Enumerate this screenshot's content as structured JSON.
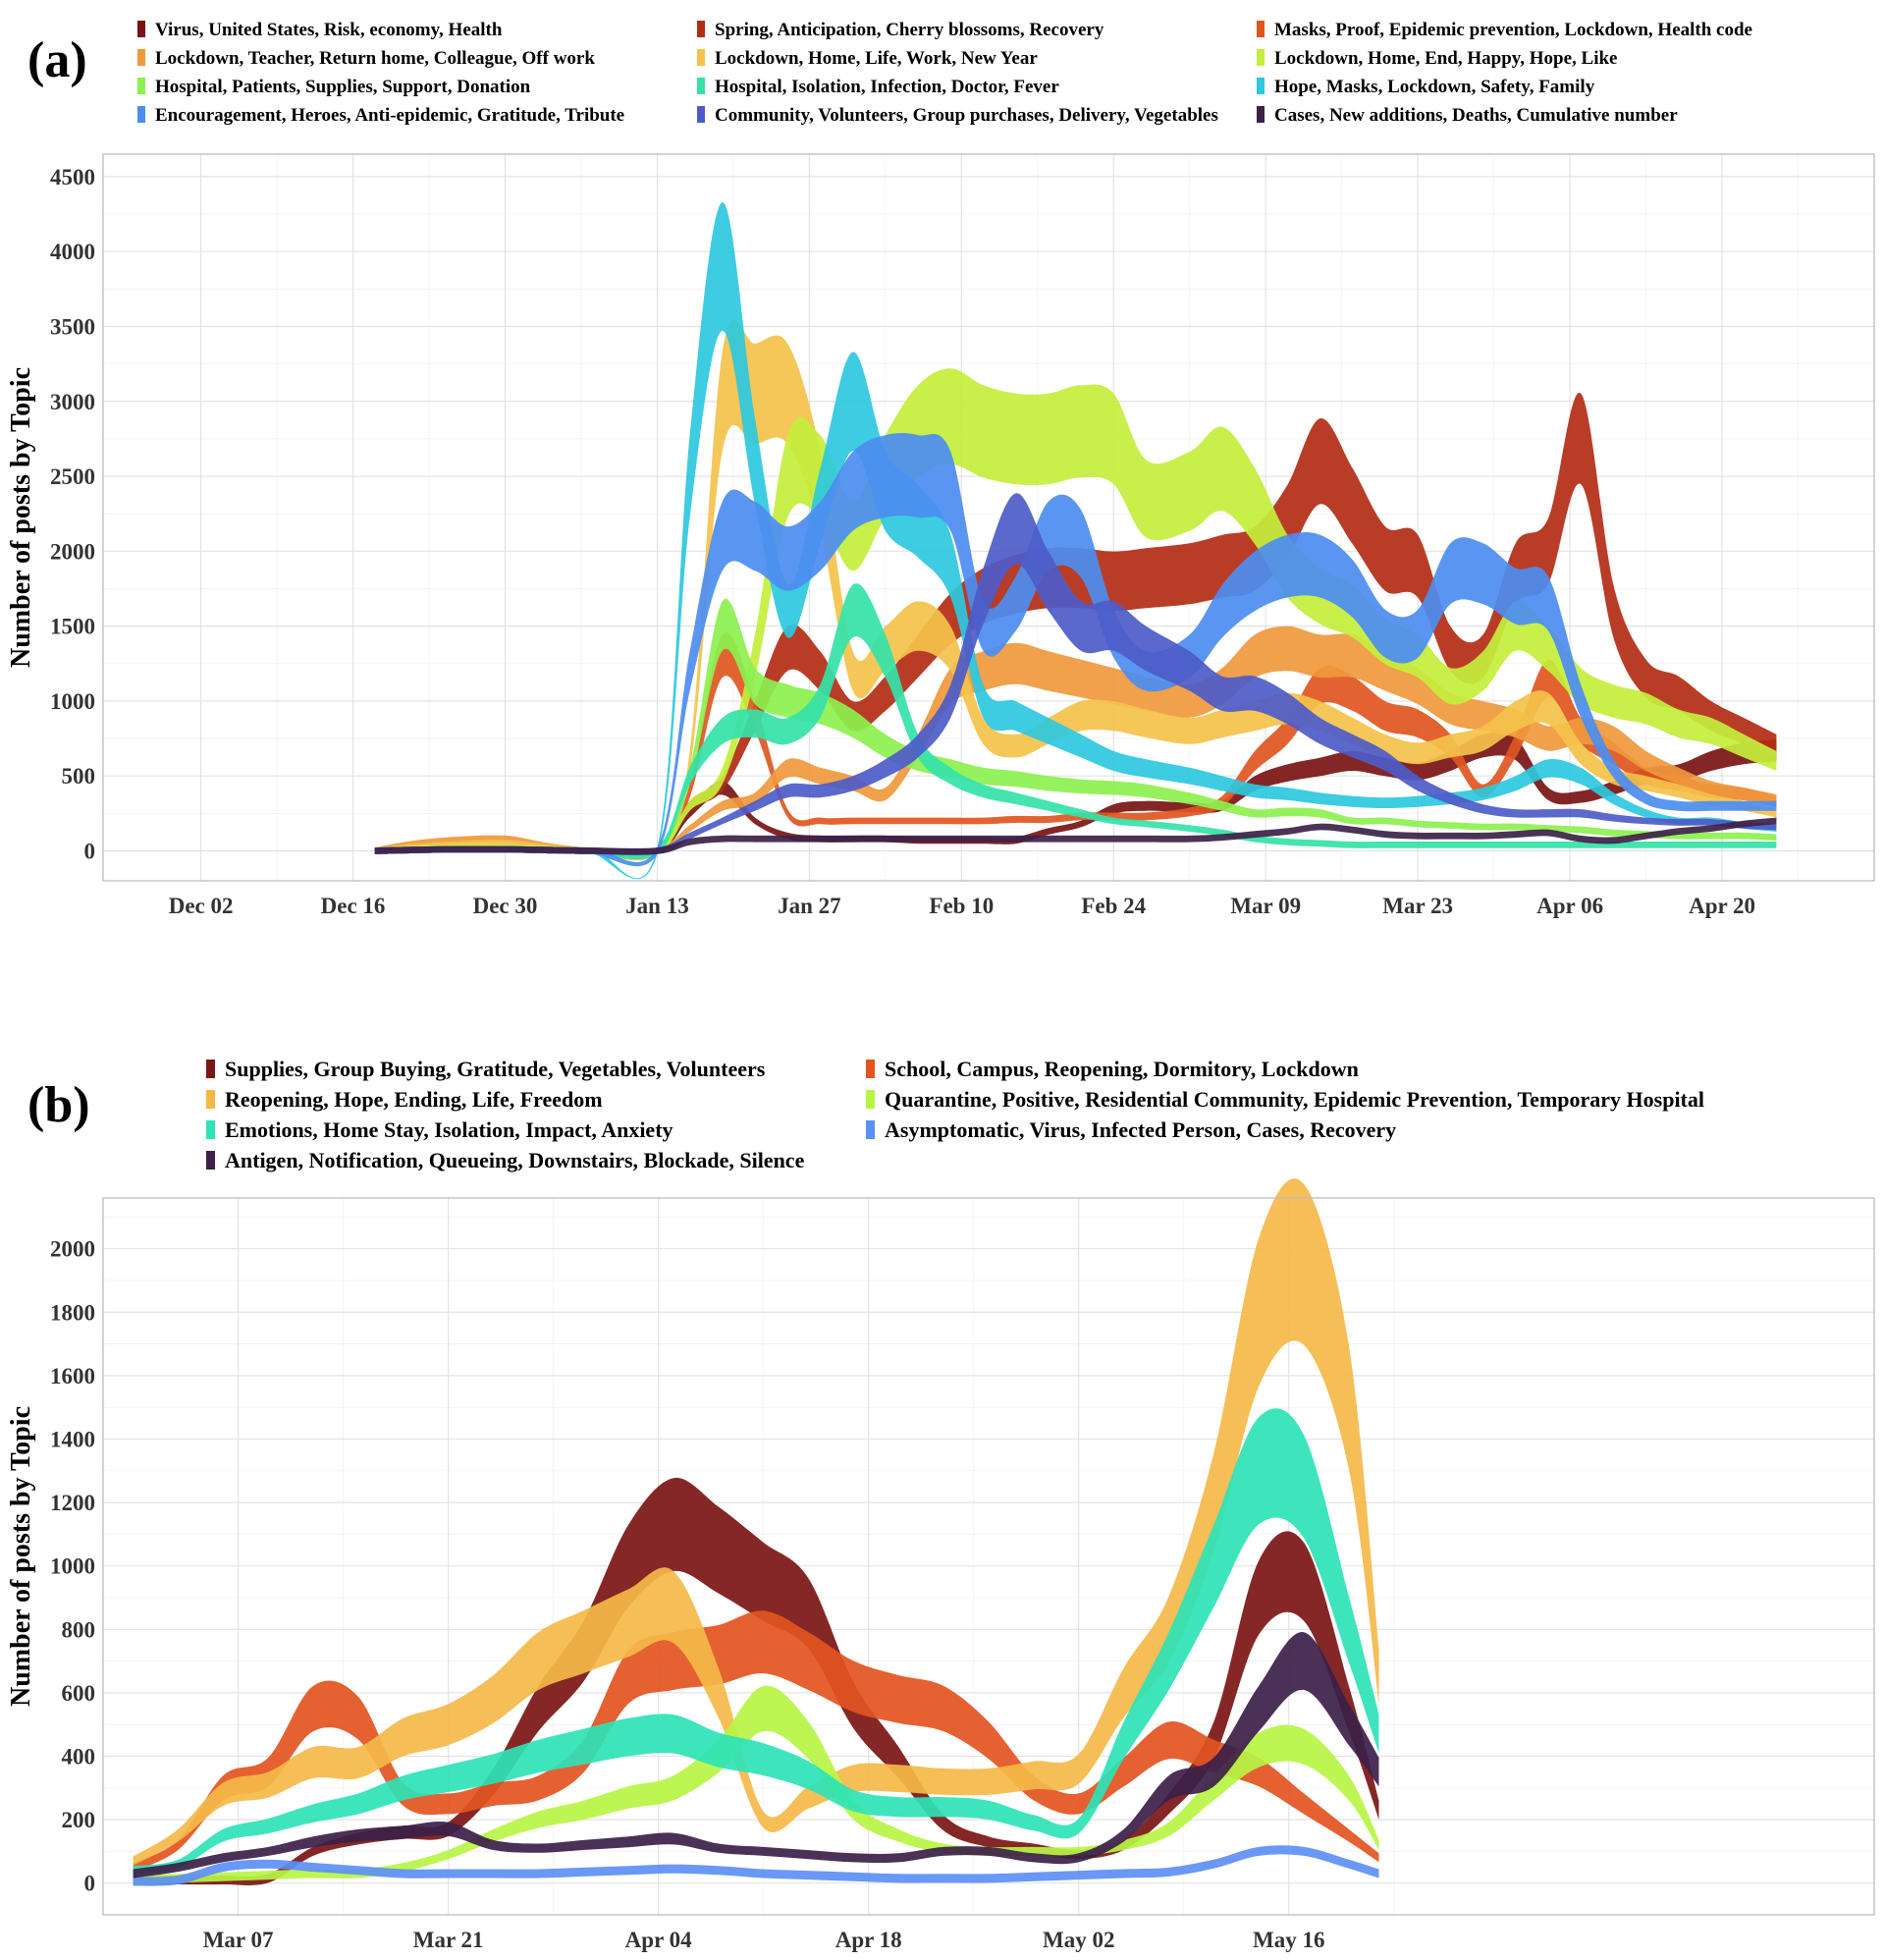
{
  "chart_data": [
    {
      "panel": "(a)",
      "type": "area",
      "ylabel": "Number of posts by Topic",
      "xlabel": "",
      "x_ticks": [
        "Dec 02",
        "Dec 16",
        "Dec 30",
        "Jan 13",
        "Jan 27",
        "Feb 10",
        "Feb 24",
        "Mar 09",
        "Mar 23",
        "Apr 06",
        "Apr 20"
      ],
      "y_ticks": [
        0,
        500,
        1000,
        1500,
        2000,
        2500,
        3000,
        3500,
        4000,
        4500
      ],
      "ylim": [
        -200,
        4650
      ],
      "legend_position": "top",
      "x": [
        "Dec 18",
        "Dec 21",
        "Dec 25",
        "Dec 30",
        "Jan 03",
        "Jan 07",
        "Jan 13",
        "Jan 16",
        "Jan 19",
        "Jan 22",
        "Jan 25",
        "Jan 28",
        "Jan 31",
        "Feb 03",
        "Feb 06",
        "Feb 09",
        "Feb 12",
        "Feb 15",
        "Feb 18",
        "Feb 21",
        "Feb 24",
        "Feb 27",
        "Mar 02",
        "Mar 05",
        "Mar 08",
        "Mar 11",
        "Mar 14",
        "Mar 17",
        "Mar 20",
        "Mar 23",
        "Mar 26",
        "Mar 29",
        "Apr 01",
        "Apr 04",
        "Apr 07",
        "Apr 10",
        "Apr 13",
        "Apr 16",
        "Apr 19",
        "Apr 22",
        "Apr 25"
      ],
      "series": [
        {
          "name": "Virus, United States, Risk, economy, Health",
          "color": "#7a1414",
          "values": [
            0,
            5,
            10,
            10,
            5,
            0,
            0,
            250,
            420,
            200,
            100,
            80,
            80,
            80,
            70,
            70,
            70,
            70,
            130,
            180,
            280,
            300,
            290,
            300,
            450,
            520,
            560,
            600,
            560,
            530,
            600,
            700,
            680,
            380,
            360,
            420,
            500,
            520,
            600,
            650,
            670
          ]
        },
        {
          "name": "Spring, Anticipation, Cherry blossoms, Recovery",
          "color": "#b32d13",
          "values": [
            0,
            5,
            10,
            10,
            5,
            0,
            0,
            300,
            450,
            900,
            1350,
            1200,
            900,
            1050,
            1300,
            1550,
            1700,
            1780,
            1820,
            1820,
            1800,
            1820,
            1850,
            1900,
            1950,
            2200,
            2600,
            2300,
            1950,
            1900,
            1350,
            1300,
            1850,
            2000,
            2750,
            1600,
            1150,
            1050,
            900,
            800,
            700
          ]
        },
        {
          "name": "Masks, Proof, Epidemic prevention, Lockdown, Health code",
          "color": "#e0561f",
          "values": [
            0,
            5,
            10,
            10,
            5,
            0,
            0,
            400,
            1300,
            900,
            250,
            200,
            200,
            200,
            200,
            200,
            200,
            210,
            210,
            230,
            230,
            230,
            260,
            330,
            600,
            800,
            1100,
            1050,
            900,
            850,
            700,
            400,
            700,
            1150,
            800,
            650,
            500,
            450,
            400,
            380,
            330
          ]
        },
        {
          "name": "Lockdown, Teacher, Return home, Colleague, Off work",
          "color": "#f0983c",
          "values": [
            0,
            40,
            70,
            80,
            30,
            0,
            0,
            150,
            300,
            350,
            550,
            500,
            450,
            380,
            700,
            1100,
            1200,
            1250,
            1200,
            1150,
            1100,
            1050,
            1000,
            1100,
            1300,
            1350,
            1300,
            1300,
            1200,
            1100,
            950,
            900,
            850,
            750,
            800,
            750,
            600,
            500,
            420,
            380,
            340
          ]
        },
        {
          "name": "Lockdown, Home, Life, Work, New Year",
          "color": "#f4c24a",
          "values": [
            0,
            20,
            40,
            50,
            20,
            0,
            0,
            600,
            3000,
            3050,
            3050,
            2400,
            1200,
            1350,
            1500,
            1350,
            800,
            700,
            800,
            900,
            900,
            850,
            800,
            850,
            900,
            950,
            900,
            800,
            700,
            650,
            700,
            750,
            900,
            950,
            650,
            500,
            450,
            400,
            340,
            300,
            250
          ]
        },
        {
          "name": "Lockdown, Home, End, Happy, Hope, Like",
          "color": "#c4ee3c",
          "values": [
            0,
            10,
            20,
            20,
            10,
            0,
            0,
            300,
            500,
            1300,
            2500,
            2500,
            2100,
            2500,
            2800,
            2900,
            2800,
            2750,
            2750,
            2800,
            2750,
            2350,
            2400,
            2550,
            2300,
            1900,
            1700,
            1600,
            1400,
            1300,
            1100,
            1200,
            1500,
            1350,
            1100,
            1000,
            950,
            850,
            800,
            700,
            600
          ]
        },
        {
          "name": "Hospital, Patients, Supplies, Support, Donation",
          "color": "#8cf04e",
          "values": [
            0,
            5,
            10,
            10,
            5,
            0,
            0,
            500,
            1500,
            1100,
            1000,
            950,
            850,
            700,
            600,
            550,
            500,
            480,
            450,
            430,
            420,
            400,
            350,
            300,
            250,
            260,
            250,
            200,
            200,
            180,
            170,
            160,
            160,
            150,
            140,
            120,
            110,
            100,
            100,
            100,
            90
          ]
        },
        {
          "name": "Hospital, Isolation, Infection, Doctor, Fever",
          "color": "#34e2a8",
          "values": [
            0,
            5,
            10,
            10,
            5,
            0,
            0,
            500,
            800,
            850,
            800,
            1000,
            1600,
            1300,
            700,
            500,
            400,
            350,
            300,
            250,
            200,
            180,
            150,
            120,
            80,
            60,
            50,
            40,
            40,
            40,
            40,
            40,
            40,
            40,
            40,
            40,
            40,
            40,
            40,
            40,
            40
          ]
        },
        {
          "name": "Hope, Masks, Lockdown, Safety, Family",
          "color": "#2dc8de",
          "values": [
            0,
            5,
            10,
            10,
            5,
            0,
            0,
            2500,
            3900,
            2600,
            1600,
            2300,
            3000,
            2400,
            2200,
            1900,
            1000,
            900,
            800,
            700,
            600,
            550,
            500,
            450,
            400,
            380,
            350,
            330,
            320,
            330,
            350,
            380,
            450,
            550,
            500,
            350,
            250,
            200,
            200,
            170,
            150
          ]
        },
        {
          "name": "Encouragement, Heroes, Anti-epidemic, Gratitude, Tribute",
          "color": "#4c8df0",
          "values": [
            0,
            5,
            10,
            10,
            5,
            0,
            0,
            1200,
            2100,
            2100,
            1950,
            2100,
            2400,
            2500,
            2500,
            2400,
            1500,
            1650,
            2100,
            2050,
            1450,
            1200,
            1300,
            1600,
            1800,
            1900,
            1900,
            1750,
            1450,
            1450,
            1850,
            1850,
            1700,
            1650,
            1000,
            550,
            350,
            300,
            300,
            300,
            300
          ]
        },
        {
          "name": "Community, Volunteers, Group purchases, Delivery, Vegetables",
          "color": "#4d5bc8",
          "values": [
            0,
            5,
            10,
            10,
            5,
            0,
            0,
            100,
            200,
            300,
            400,
            400,
            450,
            550,
            700,
            1000,
            1700,
            2150,
            1800,
            1500,
            1500,
            1350,
            1200,
            1050,
            1050,
            950,
            800,
            700,
            600,
            450,
            350,
            280,
            250,
            250,
            250,
            220,
            200,
            190,
            190,
            170,
            160
          ]
        },
        {
          "name": "Cases, New additions, Deaths, Cumulative number",
          "color": "#3d2248",
          "values": [
            0,
            5,
            10,
            10,
            5,
            0,
            0,
            60,
            80,
            80,
            80,
            80,
            80,
            80,
            80,
            80,
            80,
            80,
            80,
            80,
            80,
            80,
            80,
            90,
            110,
            130,
            160,
            140,
            110,
            100,
            100,
            100,
            110,
            120,
            80,
            70,
            100,
            130,
            150,
            180,
            200
          ]
        }
      ]
    },
    {
      "panel": "(b)",
      "type": "area",
      "ylabel": "Number of posts by Topic",
      "xlabel": "",
      "x_ticks": [
        "Mar 07",
        "Mar 21",
        "Apr 04",
        "Apr 18",
        "May 02",
        "May 16"
      ],
      "y_ticks": [
        0,
        200,
        400,
        600,
        800,
        1000,
        1200,
        1400,
        1600,
        1800,
        2000
      ],
      "ylim": [
        -100,
        2160
      ],
      "legend_position": "top",
      "x": [
        "Feb 29",
        "Mar 03",
        "Mar 06",
        "Mar 09",
        "Mar 12",
        "Mar 15",
        "Mar 18",
        "Mar 21",
        "Mar 24",
        "Mar 27",
        "Mar 30",
        "Apr 02",
        "Apr 05",
        "Apr 08",
        "Apr 11",
        "Apr 14",
        "Apr 17",
        "Apr 20",
        "Apr 23",
        "Apr 26",
        "Apr 29",
        "May 02",
        "May 05",
        "May 08",
        "May 11",
        "May 14",
        "May 17",
        "May 20",
        "May 22"
      ],
      "series": [
        {
          "name": "Supplies, Group Buying, Gratitude, Vegetables, Volunteers",
          "color": "#7c1515",
          "values": [
            10,
            10,
            10,
            15,
            100,
            140,
            160,
            170,
            320,
            550,
            730,
            1000,
            1130,
            1050,
            950,
            850,
            560,
            380,
            190,
            130,
            110,
            90,
            120,
            250,
            450,
            900,
            950,
            550,
            230
          ]
        },
        {
          "name": "School, Campus, Reopening, Dormitory, Lockdown",
          "color": "#e3541f",
          "values": [
            50,
            120,
            300,
            350,
            550,
            520,
            280,
            250,
            280,
            300,
            400,
            650,
            700,
            720,
            760,
            700,
            620,
            580,
            550,
            450,
            300,
            250,
            350,
            450,
            400,
            350,
            250,
            150,
            80
          ]
        },
        {
          "name": "Reopening, Hope, Ending, Life, Freedom",
          "color": "#f5b848",
          "values": [
            70,
            150,
            280,
            310,
            380,
            380,
            460,
            500,
            580,
            700,
            760,
            820,
            870,
            600,
            200,
            270,
            330,
            330,
            320,
            320,
            340,
            360,
            600,
            800,
            1200,
            1800,
            1950,
            1500,
            650
          ]
        },
        {
          "name": "Quarantine, Positive, Residential Community, Epidemic Prevention, Temporary Hospital",
          "color": "#b7f544",
          "values": [
            10,
            15,
            20,
            25,
            30,
            30,
            50,
            90,
            150,
            200,
            230,
            270,
            300,
            400,
            550,
            450,
            230,
            150,
            110,
            100,
            100,
            100,
            120,
            170,
            300,
            420,
            430,
            300,
            120
          ]
        },
        {
          "name": "Emotions, Home Stay, Isolation, Impact, Anxiety",
          "color": "#2ee3b6",
          "values": [
            40,
            60,
            150,
            180,
            220,
            250,
            300,
            330,
            360,
            400,
            430,
            460,
            470,
            420,
            390,
            340,
            260,
            240,
            240,
            230,
            190,
            180,
            450,
            700,
            1000,
            1300,
            1250,
            800,
            470
          ]
        },
        {
          "name": "Asymptomatic, Virus, Infected Person, Cases, Recovery",
          "color": "#5c8ff5",
          "values": [
            5,
            10,
            50,
            60,
            50,
            40,
            30,
            30,
            30,
            30,
            35,
            40,
            45,
            40,
            30,
            25,
            20,
            15,
            15,
            15,
            20,
            25,
            30,
            35,
            60,
            100,
            100,
            60,
            30
          ]
        },
        {
          "name": "Antigen, Notification, Queueing, Downstairs, Blockade, Silence",
          "color": "#3c2049",
          "values": [
            30,
            50,
            80,
            100,
            130,
            150,
            160,
            170,
            120,
            110,
            120,
            130,
            140,
            110,
            100,
            90,
            80,
            80,
            100,
            100,
            80,
            80,
            150,
            300,
            350,
            550,
            700,
            500,
            350
          ]
        }
      ]
    }
  ]
}
